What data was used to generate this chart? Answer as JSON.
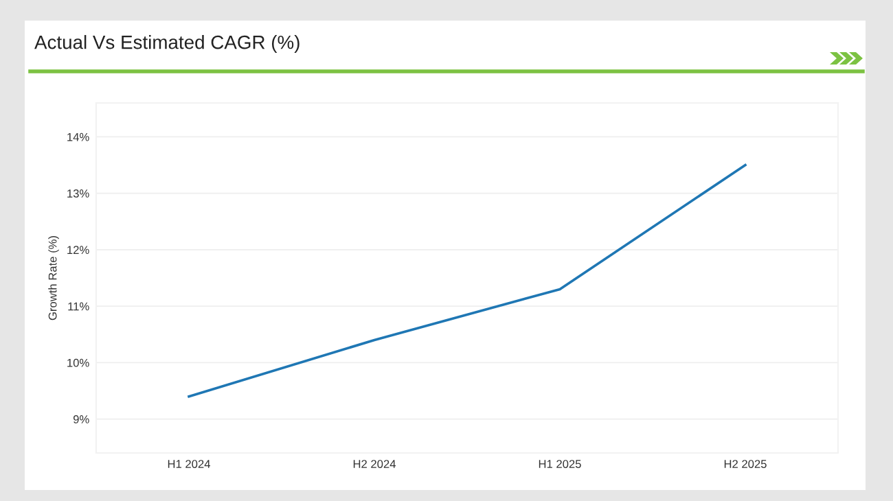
{
  "chart_data": {
    "type": "line",
    "title": "Actual Vs Estimated CAGR (%)",
    "ylabel": "Growth Rate (%)",
    "categories": [
      "H1 2024",
      "H2 2024",
      "H1 2025",
      "H2 2025"
    ],
    "series": [
      {
        "color": "#1f77b4",
        "values": [
          9.4,
          10.4,
          11.3,
          13.5
        ]
      }
    ],
    "ylim": [
      8.4,
      14.6
    ],
    "yticks": [
      {
        "value": 9,
        "label": "9%"
      },
      {
        "value": 10,
        "label": "10%"
      },
      {
        "value": 11,
        "label": "11%"
      },
      {
        "value": 12,
        "label": "12%"
      },
      {
        "value": 13,
        "label": "13%"
      },
      {
        "value": 14,
        "label": "14%"
      }
    ],
    "grid": "y",
    "marker": "none",
    "line_style": "solid"
  }
}
